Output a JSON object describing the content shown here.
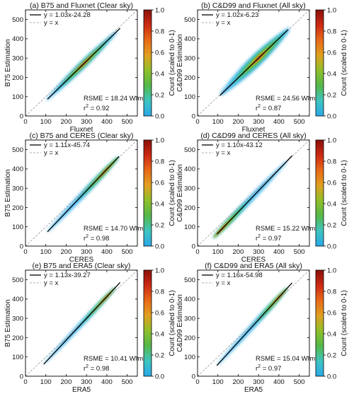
{
  "chart_data": [
    {
      "type": "scatter",
      "panel": "a",
      "title": "(a) B75 and Fluxnet (Clear sky)",
      "xlabel": "Fluxnet",
      "ylabel": "B75 Estimation",
      "xlim": [
        0,
        550
      ],
      "ylim": [
        0,
        550
      ],
      "xticks": [
        "0",
        "100",
        "200",
        "300",
        "400",
        "500"
      ],
      "yticks": [
        "0",
        "100",
        "200",
        "300",
        "400",
        "500"
      ],
      "legend": [
        "y = 1.03x-24.28",
        "y = x"
      ],
      "fit": {
        "slope": 1.03,
        "intercept": -24.28,
        "x_range": [
          108,
          465
        ]
      },
      "stats": {
        "rmse_label": "RSME = 18.24 W/m",
        "rmse_exp": "2",
        "r2_label": "r",
        "r2_exp": "2",
        "r2_value": " = 0.92"
      },
      "density": {
        "x_range": [
          105,
          450
        ],
        "half_width": 22,
        "peak_x": 290
      },
      "colorbar": {
        "label": "Count (scaled to 0-1)",
        "ticks": [
          "0.0",
          "0.2",
          "0.4",
          "0.6",
          "0.8",
          "1.0"
        ]
      }
    },
    {
      "type": "scatter",
      "panel": "b",
      "title": "(b) C&D99 and Fluxnet (All sky)",
      "xlabel": "Fluxnet",
      "ylabel": "C&D99 Estimation",
      "xlim": [
        0,
        550
      ],
      "ylim": [
        0,
        550
      ],
      "xticks": [
        "0",
        "100",
        "200",
        "300",
        "400",
        "500"
      ],
      "yticks": [
        "0",
        "100",
        "200",
        "300",
        "400",
        "500"
      ],
      "legend": [
        "y = 1.02x-6.23",
        "y = x"
      ],
      "fit": {
        "slope": 1.02,
        "intercept": -6.23,
        "x_range": [
          110,
          445
        ]
      },
      "stats": {
        "rmse_label": "RSME = 24.56 W/m",
        "rmse_exp": "2",
        "r2_label": "r",
        "r2_exp": "2",
        "r2_value": " = 0.87"
      },
      "density": {
        "x_range": [
          115,
          450
        ],
        "half_width": 38,
        "peak_x": 300
      },
      "colorbar": {
        "label": "Count (scaled to 0-1)",
        "ticks": [
          "0.0",
          "0.2",
          "0.4",
          "0.6",
          "0.8",
          "1.0"
        ]
      }
    },
    {
      "type": "scatter",
      "panel": "c",
      "title": "(c) B75 and CERES (Clear sky)",
      "xlabel": "CERES",
      "ylabel": "B75 Estimation",
      "xlim": [
        0,
        550
      ],
      "ylim": [
        0,
        550
      ],
      "xticks": [
        "0",
        "100",
        "200",
        "300",
        "400",
        "500"
      ],
      "yticks": [
        "0",
        "100",
        "200",
        "300",
        "400",
        "500"
      ],
      "legend": [
        "y = 1.11x-45.74",
        "y = x"
      ],
      "fit": {
        "slope": 1.11,
        "intercept": -45.74,
        "x_range": [
          108,
          460
        ]
      },
      "stats": {
        "rmse_label": "RSME = 14.70 W/m",
        "rmse_exp": "2",
        "r2_label": "r",
        "r2_exp": "2",
        "r2_value": " = 0.98"
      },
      "density": {
        "x_range": [
          110,
          455
        ],
        "half_width": 18,
        "peak_x": 390
      },
      "colorbar": {
        "label": "Count (scaled to 0-1)",
        "ticks": [
          "0.0",
          "0.2",
          "0.4",
          "0.6",
          "0.8",
          "1.0"
        ]
      }
    },
    {
      "type": "scatter",
      "panel": "d",
      "title": "(d) C&D99 and CERES (All sky)",
      "xlabel": "CERES",
      "ylabel": "C&D99 Estimation",
      "xlim": [
        0,
        550
      ],
      "ylim": [
        0,
        550
      ],
      "xticks": [
        "0",
        "100",
        "200",
        "300",
        "400",
        "500"
      ],
      "yticks": [
        "0",
        "100",
        "200",
        "300",
        "400",
        "500"
      ],
      "legend": [
        "y = 1.10x-43.12",
        "y = x"
      ],
      "fit": {
        "slope": 1.1,
        "intercept": -43.12,
        "x_range": [
          95,
          465
        ]
      },
      "stats": {
        "rmse_label": "RSME = 15.22 W/m",
        "rmse_exp": "2",
        "r2_label": "r",
        "r2_exp": "2",
        "r2_value": " = 0.97"
      },
      "density": {
        "x_range": [
          80,
          440
        ],
        "half_width": 18,
        "peak_x": 120
      },
      "colorbar": {
        "label": "Count (scaled to 0-1)",
        "ticks": [
          "0.0",
          "0.2",
          "0.4",
          "0.6",
          "0.8",
          "1.0"
        ]
      }
    },
    {
      "type": "scatter",
      "panel": "e",
      "title": "(e) B75 and ERA5 (Clear sky)",
      "xlabel": "ERA5",
      "ylabel": "B75 Estimation",
      "xlim": [
        0,
        550
      ],
      "ylim": [
        0,
        550
      ],
      "xticks": [
        "0",
        "100",
        "200",
        "300",
        "400",
        "500"
      ],
      "yticks": [
        "0",
        "100",
        "200",
        "300",
        "400",
        "500"
      ],
      "legend": [
        "y = 1.13x-39.27",
        "y = x"
      ],
      "fit": {
        "slope": 1.13,
        "intercept": -39.27,
        "x_range": [
          90,
          465
        ]
      },
      "stats": {
        "rmse_label": "RSME = 10.41 W/m",
        "rmse_exp": "2",
        "r2_label": "r",
        "r2_exp": "2",
        "r2_value": " = 0.98"
      },
      "density": {
        "x_range": [
          95,
          440
        ],
        "half_width": 14,
        "peak_x": 395
      },
      "colorbar": {
        "label": "Count (scaled to 0-1)",
        "ticks": [
          "0.0",
          "0.2",
          "0.4",
          "0.6",
          "0.8",
          "1.0"
        ]
      }
    },
    {
      "type": "scatter",
      "panel": "f",
      "title": "(f) C&D99 and ERA5 (All sky)",
      "xlabel": "ERA5",
      "ylabel": "C&D99 Estimation",
      "xlim": [
        0,
        550
      ],
      "ylim": [
        0,
        550
      ],
      "xticks": [
        "0",
        "100",
        "200",
        "300",
        "400",
        "500"
      ],
      "yticks": [
        "0",
        "100",
        "200",
        "300",
        "400",
        "500"
      ],
      "legend": [
        "y = 1.16x-54.98",
        "y = x"
      ],
      "fit": {
        "slope": 1.16,
        "intercept": -54.98,
        "x_range": [
          95,
          465
        ]
      },
      "stats": {
        "rmse_label": "RSME = 15.04 W/m",
        "rmse_exp": "2",
        "r2_label": "r",
        "r2_exp": "2",
        "r2_value": " = 0.97"
      },
      "density": {
        "x_range": [
          100,
          440
        ],
        "half_width": 16,
        "peak_x": 400
      },
      "colorbar": {
        "label": "Count (scaled to 0-1)",
        "ticks": [
          "0.0",
          "0.2",
          "0.4",
          "0.6",
          "0.8",
          "1.0"
        ]
      }
    }
  ],
  "colors": {
    "colormap": [
      "#29a8e8",
      "#3fc4c0",
      "#55b84a",
      "#8fbf2a",
      "#e0a020",
      "#e86a18",
      "#cc2a14",
      "#8a1008"
    ],
    "fit_line": "#000000",
    "identity_line": "#999999"
  }
}
